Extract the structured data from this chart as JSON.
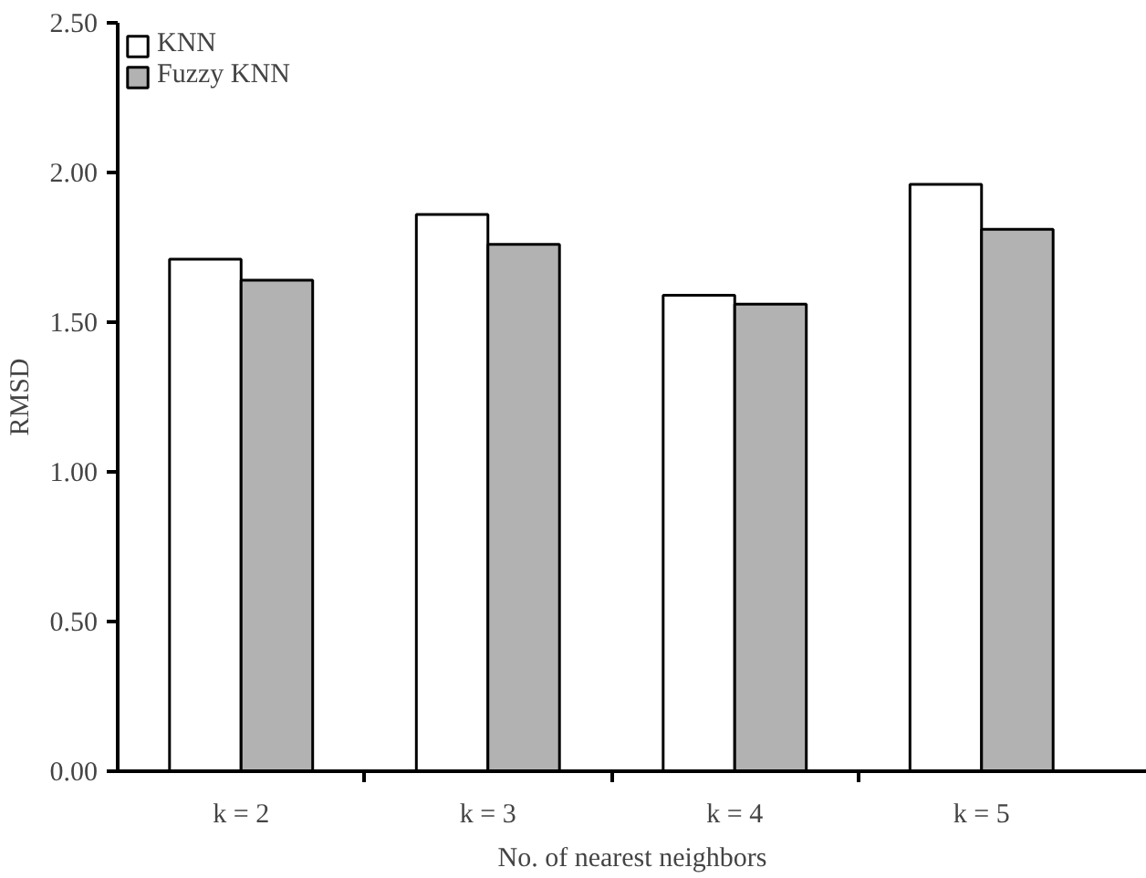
{
  "chart_data": {
    "type": "bar",
    "xlabel": "No. of nearest neighbors",
    "ylabel": "RMSD",
    "categories": [
      "k = 2",
      "k = 3",
      "k = 4",
      "k = 5"
    ],
    "series": [
      {
        "name": "KNN",
        "color": "#ffffff",
        "values": [
          1.71,
          1.86,
          1.59,
          1.96
        ]
      },
      {
        "name": "Fuzzy KNN",
        "color": "#b2b2b2",
        "values": [
          1.64,
          1.76,
          1.56,
          1.81
        ]
      }
    ],
    "ylim": [
      0,
      2.5
    ],
    "yticks": [
      {
        "value": 0,
        "label": "0.00"
      },
      {
        "value": 0.5,
        "label": "0.50"
      },
      {
        "value": 1,
        "label": "1.00"
      },
      {
        "value": 1.5,
        "label": "1.50"
      },
      {
        "value": 2,
        "label": "2.00"
      },
      {
        "value": 2.5,
        "label": "2.50"
      }
    ],
    "grid": false,
    "legend": "top left"
  }
}
